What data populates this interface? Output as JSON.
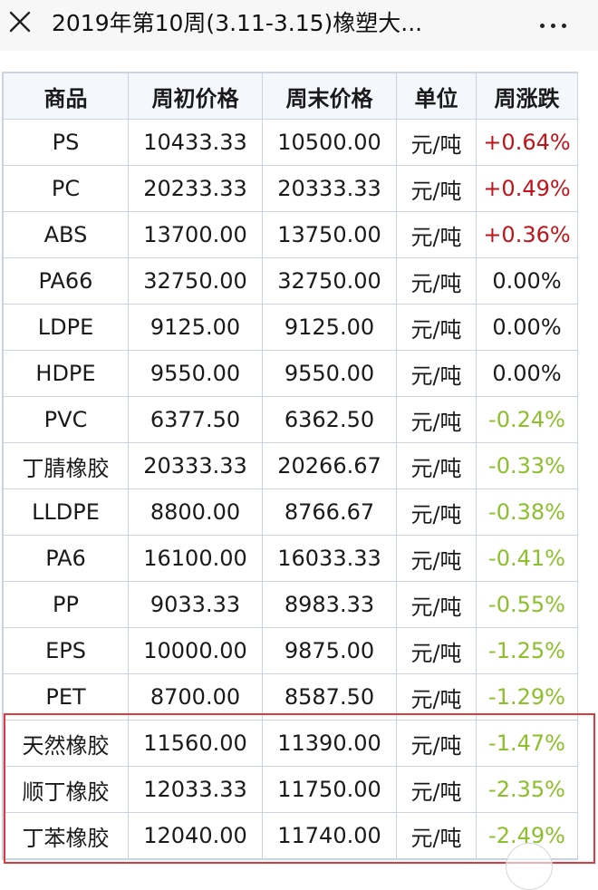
{
  "header": {
    "title": "2019年第10周(3.11-3.15)橡塑大..."
  },
  "table": {
    "columns": [
      "商品",
      "周初价格",
      "周末价格",
      "单位",
      "周涨跌"
    ],
    "rows": [
      {
        "name": "PS",
        "start": "10433.33",
        "end": "10500.00",
        "unit": "元/吨",
        "change": "+0.64%",
        "trend": "up"
      },
      {
        "name": "PC",
        "start": "20233.33",
        "end": "20333.33",
        "unit": "元/吨",
        "change": "+0.49%",
        "trend": "up"
      },
      {
        "name": "ABS",
        "start": "13700.00",
        "end": "13750.00",
        "unit": "元/吨",
        "change": "+0.36%",
        "trend": "up"
      },
      {
        "name": "PA66",
        "start": "32750.00",
        "end": "32750.00",
        "unit": "元/吨",
        "change": "0.00%",
        "trend": "flat"
      },
      {
        "name": "LDPE",
        "start": "9125.00",
        "end": "9125.00",
        "unit": "元/吨",
        "change": "0.00%",
        "trend": "flat"
      },
      {
        "name": "HDPE",
        "start": "9550.00",
        "end": "9550.00",
        "unit": "元/吨",
        "change": "0.00%",
        "trend": "flat"
      },
      {
        "name": "PVC",
        "start": "6377.50",
        "end": "6362.50",
        "unit": "元/吨",
        "change": "-0.24%",
        "trend": "down"
      },
      {
        "name": "丁腈橡胶",
        "start": "20333.33",
        "end": "20266.67",
        "unit": "元/吨",
        "change": "-0.33%",
        "trend": "down"
      },
      {
        "name": "LLDPE",
        "start": "8800.00",
        "end": "8766.67",
        "unit": "元/吨",
        "change": "-0.38%",
        "trend": "down"
      },
      {
        "name": "PA6",
        "start": "16100.00",
        "end": "16033.33",
        "unit": "元/吨",
        "change": "-0.41%",
        "trend": "down"
      },
      {
        "name": "PP",
        "start": "9033.33",
        "end": "8983.33",
        "unit": "元/吨",
        "change": "-0.55%",
        "trend": "down"
      },
      {
        "name": "EPS",
        "start": "10000.00",
        "end": "9875.00",
        "unit": "元/吨",
        "change": "-1.25%",
        "trend": "down"
      },
      {
        "name": "PET",
        "start": "8700.00",
        "end": "8587.50",
        "unit": "元/吨",
        "change": "-1.29%",
        "trend": "down"
      },
      {
        "name": "天然橡胶",
        "start": "11560.00",
        "end": "11390.00",
        "unit": "元/吨",
        "change": "-1.47%",
        "trend": "down"
      },
      {
        "name": "顺丁橡胶",
        "start": "12033.33",
        "end": "11750.00",
        "unit": "元/吨",
        "change": "-2.35%",
        "trend": "down"
      },
      {
        "name": "丁苯橡胶",
        "start": "12040.00",
        "end": "11740.00",
        "unit": "元/吨",
        "change": "-2.49%",
        "trend": "down"
      }
    ]
  },
  "colors": {
    "up": "#c0141b",
    "down": "#8cbf2b",
    "highlight_border": "#e0393e"
  },
  "icons": {
    "close": "close-icon",
    "more": "more-icon"
  }
}
